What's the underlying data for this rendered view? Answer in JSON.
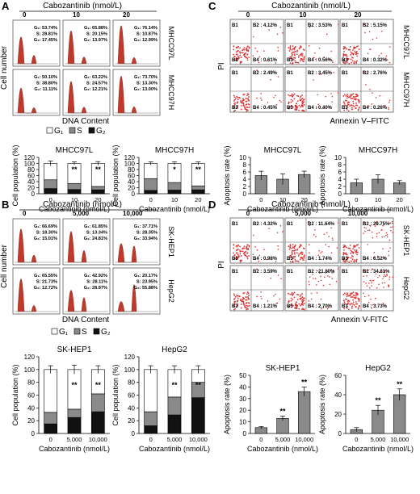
{
  "panel_labels": [
    "A",
    "B",
    "C",
    "D"
  ],
  "conc_title": "Cabozantinib (nmol/L)",
  "conc_ab_A": [
    "0",
    "10",
    "20"
  ],
  "conc_ab_B": [
    "0",
    "5,000",
    "10,000"
  ],
  "ylabel_cell_number": "Cell number",
  "xlabel_dna": "DNA Content",
  "ylabel_pi": "PI",
  "xlabel_annexin_C": "Annexin V–FITC",
  "xlabel_annexin_D": "Annexin V-FITC",
  "legend_labels": [
    "G₁",
    "S",
    "G₂"
  ],
  "ylabel_cellpop": "Cell population (%)",
  "ylabel_apoptosis": "Apoptosis rate (%)",
  "xlabel_caboz": "Cabozantinib (nmol/L)",
  "colors": {
    "hist_fill": "#c0392b",
    "dot": "#d33",
    "bar_white": "#ffffff",
    "bar_gray": "#8a8a8a",
    "bar_black": "#111111"
  },
  "hist_A": [
    {
      "cell": "MHCC97L",
      "rows": [
        [
          "G₁: 53.74%",
          "S: 28.81%",
          "G₂: 17.45%"
        ],
        [
          "G₁: 65.88%",
          "S: 20.15%",
          "G₂: 13.97%"
        ],
        [
          "G₁: 76.14%",
          "S: 10.87%",
          "G₂: 12.99%"
        ]
      ]
    },
    {
      "cell": "MHCC97H",
      "rows": [
        [
          "G₁: 50.10%",
          "S: 38.80%",
          "G₂: 11.11%"
        ],
        [
          "G₁: 63.22%",
          "S: 24.57%",
          "G₂: 12.21%"
        ],
        [
          "G₁: 73.70%",
          "S: 13.30%",
          "G₂: 13.00%"
        ]
      ]
    }
  ],
  "hist_B": [
    {
      "cell": "SK-HEP1",
      "rows": [
        [
          "G₁: 66.69%",
          "S: 18.30%",
          "G₂: 15.01%"
        ],
        [
          "G₁: 61.85%",
          "S: 13.34%",
          "G₂: 24.81%"
        ],
        [
          "G₁: 37.71%",
          "S: 28.35%",
          "G₂: 33.94%"
        ]
      ]
    },
    {
      "cell": "HepG2",
      "rows": [
        [
          "G₁: 65.55%",
          "S: 21.73%",
          "G₂: 12.72%"
        ],
        [
          "G₁: 42.92%",
          "S: 28.11%",
          "G₂: 28.97%"
        ],
        [
          "G₁: 20.17%",
          "S: 23.95%",
          "G₂: 55.88%"
        ]
      ]
    }
  ],
  "flow_C": [
    {
      "cell": "MHCC97L",
      "cells": [
        [
          "B1",
          "B2 : 4.12%",
          "B3",
          "B4 : 0.61%"
        ],
        [
          "B1",
          "B2 : 3.53%",
          "B3",
          "B4 : 0.56%"
        ],
        [
          "B1",
          "B2 : 5.15%",
          "B3",
          "B4 : 0.32%"
        ]
      ]
    },
    {
      "cell": "MHCC97H",
      "cells": [
        [
          "B1",
          "B2 : 2.49%",
          "B3",
          "B4 : 0.45%"
        ],
        [
          "B1",
          "B2 : 3.45%",
          "B3",
          "B4 : 0.40%"
        ],
        [
          "B1",
          "B2 : 2.76%",
          "B3",
          "B4 : 0.26%"
        ]
      ]
    }
  ],
  "flow_D": [
    {
      "cell": "SK-HEP1",
      "cells": [
        [
          "B1",
          "B2 : 4.32%",
          "B3",
          "B4 : 0.98%"
        ],
        [
          "B1",
          "B2 : 11.64%",
          "B3",
          "B4 : 1.74%"
        ],
        [
          "B1",
          "B2 : 29.75%",
          "B3",
          "B4 : 6.52%"
        ]
      ]
    },
    {
      "cell": "HepG2",
      "cells": [
        [
          "B1",
          "B2 : 3.59%",
          "B3",
          "B4 : 1.21%"
        ],
        [
          "B1",
          "B2 : 21.80%",
          "B3",
          "B4 : 2.70%"
        ],
        [
          "B1",
          "B2 : 34.81%",
          "B3",
          "B4 : 3.73%"
        ]
      ]
    }
  ],
  "chart_data": [
    {
      "type": "bar",
      "stacked": true,
      "title": "MHCC97L",
      "categories": [
        "0",
        "10",
        "20"
      ],
      "series": [
        {
          "name": "G₁",
          "values": [
            54,
            66,
            76
          ]
        },
        {
          "name": "S",
          "values": [
            29,
            20,
            11
          ]
        },
        {
          "name": "G₂",
          "values": [
            17,
            14,
            13
          ]
        }
      ],
      "ylim": [
        0,
        120
      ],
      "yticks": [
        "0",
        "20",
        "40",
        "60",
        "80",
        "100",
        "120"
      ],
      "errors": [
        8,
        5,
        6
      ],
      "sig": [
        "",
        "**",
        "**"
      ],
      "xlabel": "Cabozantinib (nmol/L)",
      "ylabel": "Cell population (%)"
    },
    {
      "type": "bar",
      "stacked": true,
      "title": "MHCC97H",
      "categories": [
        "0",
        "10",
        "20"
      ],
      "series": [
        {
          "name": "G₁",
          "values": [
            50,
            63,
            74
          ]
        },
        {
          "name": "S",
          "values": [
            39,
            25,
            13
          ]
        },
        {
          "name": "G₂",
          "values": [
            11,
            12,
            13
          ]
        }
      ],
      "ylim": [
        0,
        120
      ],
      "yticks": [
        "0",
        "20",
        "40",
        "60",
        "80",
        "100",
        "120"
      ],
      "errors": [
        5,
        5,
        5
      ],
      "sig": [
        "",
        "*",
        "**"
      ],
      "xlabel": "Cabozantinib (nmol/L)",
      "ylabel": "Cell population (%)"
    },
    {
      "type": "bar",
      "title": "MHCC97L",
      "categories": [
        "0",
        "10",
        "20"
      ],
      "values": [
        5,
        4,
        5.3
      ],
      "errors": [
        1.2,
        1.5,
        0.9
      ],
      "ylim": [
        0,
        10
      ],
      "yticks": [
        "0",
        "2",
        "4",
        "6",
        "8",
        "10"
      ],
      "sig": [
        "",
        "",
        ""
      ],
      "xlabel": "Cabozantinib (nmol/L)",
      "ylabel": "Apoptosis rate (%)"
    },
    {
      "type": "bar",
      "title": "MHCC97H",
      "categories": [
        "0",
        "10",
        "20"
      ],
      "values": [
        3,
        4,
        3
      ],
      "errors": [
        1,
        1.2,
        0.6
      ],
      "ylim": [
        0,
        10
      ],
      "yticks": [
        "0",
        "2",
        "4",
        "6",
        "8",
        "10"
      ],
      "sig": [
        "",
        "",
        ""
      ],
      "xlabel": "Cabozantinib (nmol/L)",
      "ylabel": "Apoptosis rate (%)"
    },
    {
      "type": "bar",
      "stacked": true,
      "title": "SK-HEP1",
      "categories": [
        "0",
        "5,000",
        "10,000"
      ],
      "series": [
        {
          "name": "G₁",
          "values": [
            67,
            62,
            38
          ]
        },
        {
          "name": "S",
          "values": [
            18,
            13,
            28
          ]
        },
        {
          "name": "G₂",
          "values": [
            15,
            25,
            34
          ]
        }
      ],
      "ylim": [
        0,
        120
      ],
      "yticks": [
        "0",
        "20",
        "40",
        "60",
        "80",
        "100",
        "120"
      ],
      "errors": [
        6,
        7,
        6
      ],
      "sig": [
        "",
        "**",
        "**"
      ],
      "xlabel": "Cabozantinib (nmol/L)",
      "ylabel": "Cell population (%)"
    },
    {
      "type": "bar",
      "stacked": true,
      "title": "HepG2",
      "categories": [
        "0",
        "5,000",
        "10,000"
      ],
      "series": [
        {
          "name": "G₁",
          "values": [
            66,
            43,
            20
          ]
        },
        {
          "name": "S",
          "values": [
            22,
            28,
            24
          ]
        },
        {
          "name": "G₂",
          "values": [
            12,
            29,
            56
          ]
        }
      ],
      "ylim": [
        0,
        120
      ],
      "yticks": [
        "0",
        "20",
        "40",
        "60",
        "80",
        "100",
        "120"
      ],
      "errors": [
        6,
        6,
        6
      ],
      "sig": [
        "",
        "**",
        "**"
      ],
      "xlabel": "Cabozantinib (nmol/L)",
      "ylabel": "Cell population (%)"
    },
    {
      "type": "bar",
      "title": "SK-HEP1",
      "categories": [
        "0",
        "5,000",
        "10,000"
      ],
      "values": [
        5,
        13,
        36
      ],
      "errors": [
        1,
        2,
        4
      ],
      "ylim": [
        0,
        50
      ],
      "yticks": [
        "0",
        "10",
        "20",
        "30",
        "40",
        "50"
      ],
      "sig": [
        "",
        "**",
        "**"
      ],
      "xlabel": "Cabozantinib (nmol/L)",
      "ylabel": "Apoptosis rate (%)"
    },
    {
      "type": "bar",
      "title": "HepG2",
      "categories": [
        "0",
        "5,000",
        "10,000"
      ],
      "values": [
        4,
        24,
        40
      ],
      "errors": [
        2,
        5,
        6
      ],
      "ylim": [
        0,
        60
      ],
      "yticks": [
        "0",
        "20",
        "40",
        "60"
      ],
      "sig": [
        "",
        "**",
        "**"
      ],
      "xlabel": "Cabozantinib (nmol/L)",
      "ylabel": "Apoptosis rate (%)"
    }
  ]
}
